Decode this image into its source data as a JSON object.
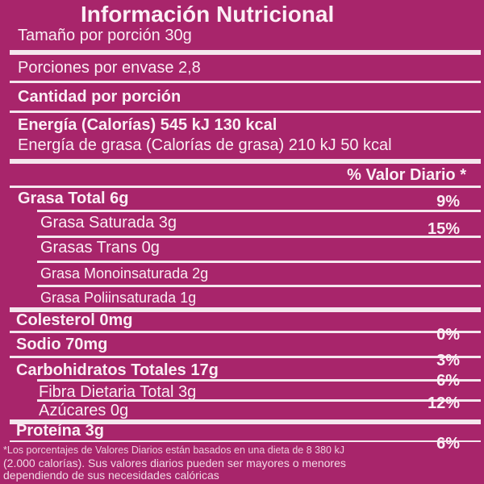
{
  "title": "Información Nutricional",
  "serving_size": "Tamaño por porción   30g",
  "servings_per_container": "Porciones por envase  2,8",
  "amount_per_serving": "Cantidad por porción",
  "energy": "Energía (Calorías) 545 kJ  130 kcal",
  "energy_from_fat": "Energía de grasa (Calorías de grasa) 210 kJ 50 kcal",
  "daily_value_header": "% Valor Diario *",
  "nutrients": [
    {
      "name": "Grasa Total 6g",
      "daily_value": "9%"
    },
    {
      "name": "Grasa Saturada 3g",
      "daily_value": "15%"
    },
    {
      "name": "Grasas Trans 0g"
    },
    {
      "name": "Grasa Monoinsaturada 2g"
    },
    {
      "name": "Grasa Poliinsaturada 1g"
    },
    {
      "name": "Colesterol 0mg"
    },
    {
      "name": "Sodio 70mg",
      "daily_value": "0%"
    },
    {
      "name": "Carbohidratos Totales 17g",
      "daily_value": "3%"
    },
    {
      "name": "Fibra Dietaria Total 3g",
      "daily_value": "6%"
    },
    {
      "name": "Azúcares 0g",
      "daily_value": "12%"
    },
    {
      "name": "Proteína 3g",
      "daily_value": "6%"
    }
  ],
  "footnote": [
    "*Los porcentajes de Valores Diarios están basados en una dieta de 8 380 kJ",
    "(2.000 calorías). Sus valores diarios pueden ser mayores o menores",
    "dependiendo de sus necesidades calóricas"
  ]
}
